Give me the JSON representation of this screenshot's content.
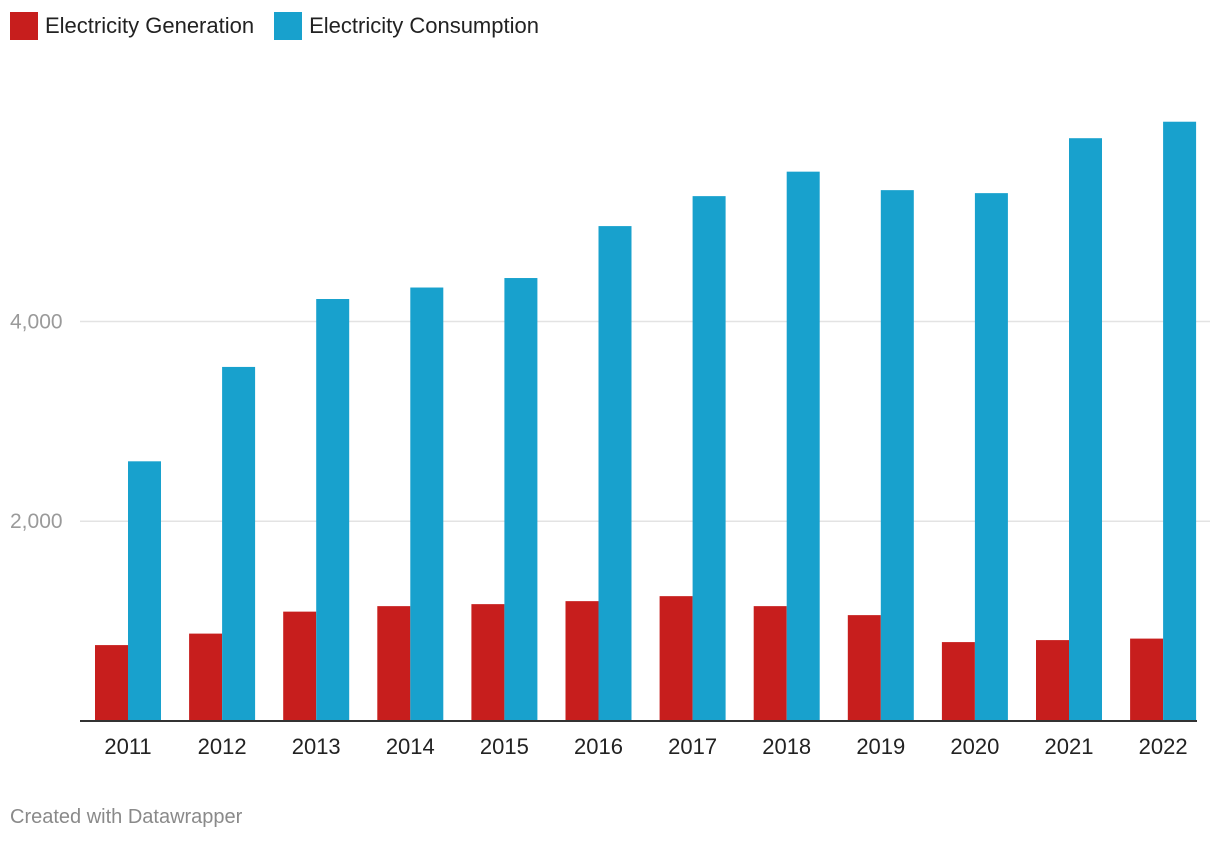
{
  "chart_data": {
    "type": "bar",
    "categories": [
      "2011",
      "2012",
      "2013",
      "2014",
      "2015",
      "2016",
      "2017",
      "2018",
      "2019",
      "2020",
      "2021",
      "2022"
    ],
    "series": [
      {
        "name": "Electricity Generation",
        "color": "#c71e1d",
        "values": [
          760,
          875,
          1095,
          1150,
          1170,
          1200,
          1250,
          1150,
          1060,
          790,
          810,
          825
        ]
      },
      {
        "name": "Electricity Consumption",
        "color": "#18a1cd",
        "values": [
          2600,
          3545,
          4225,
          4340,
          4435,
          4955,
          5255,
          5500,
          5315,
          5285,
          5835,
          6000
        ]
      }
    ],
    "yticks": [
      2000,
      4000
    ],
    "ytick_labels": [
      "2,000",
      "4,000"
    ],
    "ylim": [
      0,
      6000
    ],
    "grid": true,
    "legend": "top-left"
  },
  "footer": {
    "credit": "Created with Datawrapper"
  }
}
